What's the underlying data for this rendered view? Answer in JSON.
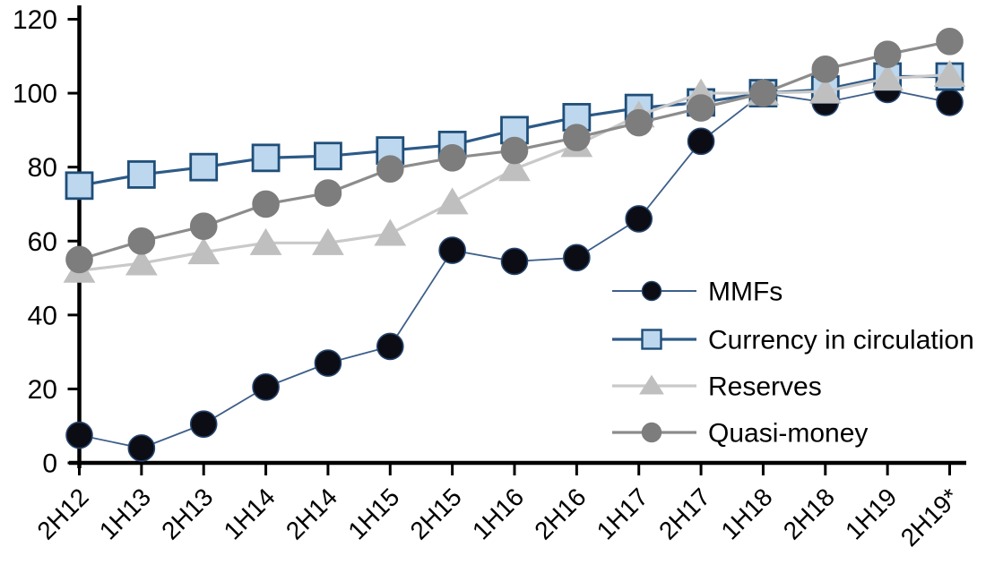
{
  "chart_data": {
    "type": "line",
    "title": "",
    "xlabel": "",
    "ylabel": "",
    "categories": [
      "2H12",
      "1H13",
      "2H13",
      "1H14",
      "2H14",
      "1H15",
      "2H15",
      "1H16",
      "2H16",
      "1H17",
      "2H17",
      "1H18",
      "2H18",
      "1H19",
      "2H19*"
    ],
    "series": [
      {
        "name": "MMFs",
        "marker": "circle",
        "values": [
          7.5,
          4,
          10.5,
          20.5,
          27,
          31.5,
          57.5,
          54.5,
          55.5,
          66,
          87,
          100,
          97.5,
          101,
          97.5
        ],
        "line_color": "#3E5F8A",
        "line_width": 1.8,
        "marker_fill": "#0C0C14",
        "marker_stroke": "#24436B"
      },
      {
        "name": "Currency in circulation",
        "marker": "square",
        "values": [
          75,
          78,
          80,
          82.5,
          83,
          84.5,
          86,
          90,
          93.5,
          96,
          97.5,
          100,
          101,
          104.5,
          104.5
        ],
        "line_color": "#2D5A87",
        "line_width": 3.2,
        "marker_fill": "#BDD7EE",
        "marker_stroke": "#1F4E79"
      },
      {
        "name": "Reserves",
        "marker": "triangle",
        "values": [
          52,
          54,
          57,
          59.5,
          59.5,
          62,
          70.5,
          79.5,
          86,
          94,
          100,
          100,
          100.5,
          104,
          105
        ],
        "line_color": "#C9C9C9",
        "line_width": 3.2,
        "marker_fill": "#BFBFBF",
        "marker_stroke": "#BFBFBF"
      },
      {
        "name": "Quasi-money",
        "marker": "circle",
        "values": [
          55,
          60,
          64,
          70,
          73,
          79.5,
          82.5,
          84.5,
          88,
          92,
          96,
          100,
          106.5,
          110.5,
          114
        ],
        "line_color": "#8C8C8C",
        "line_width": 3.2,
        "marker_fill": "#7D7D7D",
        "marker_stroke": "#7D7D7D"
      }
    ],
    "ylim": [
      0,
      120
    ],
    "yticks": [
      0,
      20,
      40,
      60,
      80,
      100,
      120
    ],
    "grid": false,
    "legend_position": "center-right",
    "legend_labels": [
      "MMFs",
      "Currency in circulation",
      "Reserves",
      "Quasi-money"
    ]
  },
  "axis_color": "#000000",
  "background_color": "#FFFFFF"
}
